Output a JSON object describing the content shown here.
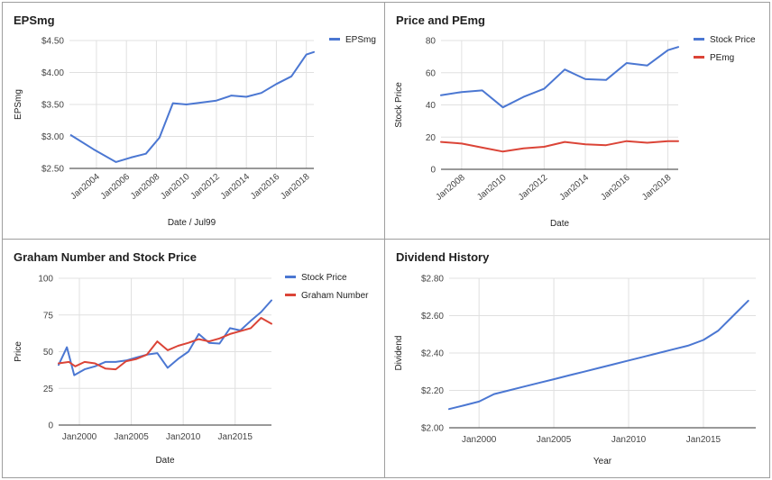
{
  "charts": [
    {
      "title": "EPSmg",
      "chart_data": {
        "type": "line",
        "xlabel": "Date / Jul99",
        "ylabel": "EPSmg",
        "x_ticks": [
          2004,
          2006,
          2008,
          2010,
          2012,
          2014,
          2016,
          2018
        ],
        "x_tick_labels": [
          "Jan2004",
          "Jan2006",
          "Jan2008",
          "Jan2010",
          "Jan2012",
          "Jan2014",
          "Jan2016",
          "Jan2018"
        ],
        "xlim": [
          2002.2,
          2018.5
        ],
        "y_ticks": [
          2.5,
          3.0,
          3.5,
          4.0,
          4.5
        ],
        "y_tick_labels": [
          "$2.50",
          "$3.00",
          "$3.50",
          "$4.00",
          "$4.50"
        ],
        "ylim": [
          2.5,
          4.5
        ],
        "grid": true,
        "legend_position": "right",
        "series": [
          {
            "name": "EPSmg",
            "color": "#4b77d2",
            "x": [
              2002.3,
              2003.8,
              2005.3,
              2006.3,
              2007.3,
              2008.2,
              2009.1,
              2010.0,
              2011.0,
              2012.0,
              2013.0,
              2014.0,
              2015.0,
              2016.0,
              2017.0,
              2018.0,
              2018.5
            ],
            "y": [
              3.02,
              2.8,
              2.6,
              2.67,
              2.73,
              2.98,
              3.52,
              3.5,
              3.53,
              3.56,
              3.64,
              3.62,
              3.68,
              3.82,
              3.94,
              4.28,
              4.32
            ]
          }
        ]
      }
    },
    {
      "title": "Price and PEmg",
      "chart_data": {
        "type": "line",
        "xlabel": "Date",
        "ylabel": "Stock Price",
        "x_ticks": [
          2008,
          2010,
          2012,
          2014,
          2016,
          2018
        ],
        "x_tick_labels": [
          "Jan2008",
          "Jan2010",
          "Jan2012",
          "Jan2014",
          "Jan2016",
          "Jan2018"
        ],
        "xlim": [
          2007.0,
          2018.5
        ],
        "y_ticks": [
          0,
          20,
          40,
          60,
          80
        ],
        "y_tick_labels": [
          "0",
          "20",
          "40",
          "60",
          "80"
        ],
        "ylim": [
          0,
          80
        ],
        "grid": true,
        "legend_position": "right",
        "series": [
          {
            "name": "Stock Price",
            "color": "#4b77d2",
            "x": [
              2007.0,
              2008.0,
              2009.0,
              2010.0,
              2011.0,
              2012.0,
              2013.0,
              2014.0,
              2015.0,
              2016.0,
              2017.0,
              2018.0,
              2018.5
            ],
            "y": [
              46,
              48,
              49,
              38.5,
              45,
              50,
              62,
              56,
              55.5,
              66,
              64.5,
              74,
              76
            ]
          },
          {
            "name": "PEmg",
            "color": "#db4437",
            "x": [
              2007.0,
              2008.0,
              2009.0,
              2010.0,
              2011.0,
              2012.0,
              2013.0,
              2014.0,
              2015.0,
              2016.0,
              2017.0,
              2018.0,
              2018.5
            ],
            "y": [
              17,
              16,
              13.5,
              11,
              13,
              14,
              17,
              15.5,
              15,
              17.5,
              16.5,
              17.5,
              17.5
            ]
          }
        ]
      }
    },
    {
      "title": "Graham Number and Stock Price",
      "chart_data": {
        "type": "line",
        "xlabel": "Date",
        "ylabel": "Price",
        "x_ticks": [
          2000,
          2005,
          2010,
          2015
        ],
        "x_tick_labels": [
          "Jan2000",
          "Jan2005",
          "Jan2010",
          "Jan2015"
        ],
        "xlim": [
          1998.0,
          2018.5
        ],
        "y_ticks": [
          0,
          25,
          50,
          75,
          100
        ],
        "y_tick_labels": [
          "0",
          "25",
          "50",
          "75",
          "100"
        ],
        "ylim": [
          0,
          100
        ],
        "grid": true,
        "legend_position": "right",
        "series": [
          {
            "name": "Stock Price",
            "color": "#4b77d2",
            "x": [
              1998.0,
              1998.8,
              1999.5,
              2000.5,
              2001.5,
              2002.5,
              2003.5,
              2004.5,
              2005.5,
              2006.5,
              2007.5,
              2008.5,
              2009.5,
              2010.5,
              2011.5,
              2012.5,
              2013.5,
              2014.5,
              2015.5,
              2016.5,
              2017.5,
              2018.5
            ],
            "y": [
              41,
              53,
              34,
              38,
              40,
              43,
              43,
              44,
              46,
              48,
              49,
              39,
              45,
              50,
              62,
              56,
              55.5,
              66,
              64.5,
              71,
              77,
              85
            ]
          },
          {
            "name": "Graham Number",
            "color": "#db4437",
            "x": [
              1998.0,
              1999.0,
              1999.6,
              2000.5,
              2001.5,
              2002.5,
              2003.5,
              2004.5,
              2005.5,
              2006.5,
              2007.5,
              2008.5,
              2009.5,
              2010.5,
              2011.5,
              2012.5,
              2013.5,
              2014.5,
              2015.5,
              2016.5,
              2017.5,
              2018.5
            ],
            "y": [
              42,
              43,
              40,
              43,
              42,
              38.5,
              38,
              43.5,
              45,
              48,
              57,
              51,
              54,
              56,
              58.5,
              57,
              59,
              62,
              64,
              66,
              73,
              69
            ]
          }
        ]
      }
    },
    {
      "title": "Dividend History",
      "chart_data": {
        "type": "line",
        "xlabel": "Year",
        "ylabel": "Dividend",
        "x_ticks": [
          2000,
          2005,
          2010,
          2015
        ],
        "x_tick_labels": [
          "Jan2000",
          "Jan2005",
          "Jan2010",
          "Jan2015"
        ],
        "xlim": [
          1998.0,
          2018.5
        ],
        "y_ticks": [
          2.0,
          2.2,
          2.4,
          2.6,
          2.8
        ],
        "y_tick_labels": [
          "$2.00",
          "$2.20",
          "$2.40",
          "$2.60",
          "$2.80"
        ],
        "ylim": [
          2.0,
          2.8
        ],
        "grid": true,
        "legend_position": "none",
        "series": [
          {
            "name": "",
            "color": "#4b77d2",
            "x": [
              1998.0,
              1999.0,
              2000.0,
              2001.0,
              2002.0,
              2003.0,
              2004.0,
              2005.0,
              2006.0,
              2007.0,
              2008.0,
              2009.0,
              2010.0,
              2011.0,
              2012.0,
              2013.0,
              2014.0,
              2015.0,
              2016.0,
              2017.0,
              2018.0
            ],
            "y": [
              2.1,
              2.12,
              2.14,
              2.18,
              2.2,
              2.22,
              2.24,
              2.26,
              2.28,
              2.3,
              2.32,
              2.34,
              2.36,
              2.38,
              2.4,
              2.42,
              2.44,
              2.47,
              2.52,
              2.6,
              2.68
            ]
          }
        ]
      }
    }
  ]
}
